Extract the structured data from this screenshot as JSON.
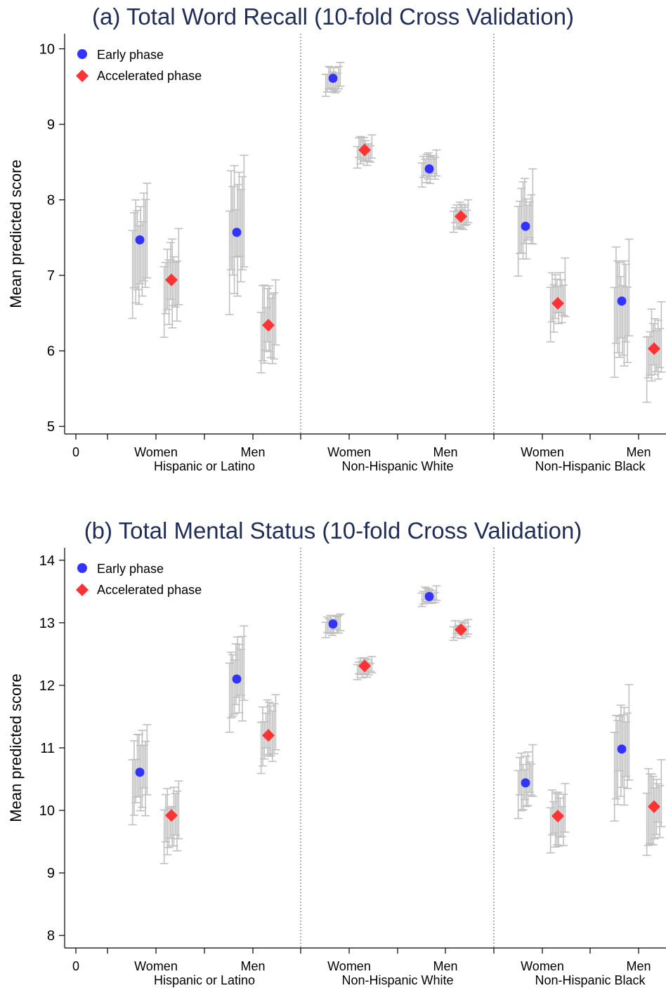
{
  "colors": {
    "early": "#3333ff",
    "accelerated": "#ff3333",
    "whisker": "#c0c0c0",
    "title": "#1f2d57"
  },
  "chart_data": [
    {
      "type": "scatter",
      "title": "(a) Total Word Recall (10-fold Cross Validation)",
      "ylabel": "Mean predicted score",
      "xlabel": "",
      "ylim": [
        4.9,
        10.2
      ],
      "yticks": [
        "5",
        "6",
        "7",
        "8",
        "9",
        "10"
      ],
      "xticks": [
        "0",
        "Women",
        "Men",
        "Women",
        "Men",
        "Women",
        "Men"
      ],
      "groups": [
        "Hispanic or Latino",
        "Non-Hispanic White",
        "Non-Hispanic Black"
      ],
      "legend": {
        "placement": "top-left",
        "entries": [
          "Early phase",
          "Accelerated phase"
        ]
      },
      "grid": false,
      "series": [
        {
          "name": "Early phase",
          "marker": "circle",
          "points": [
            {
              "group": "Hispanic or Latino",
              "sex": "Women",
              "mean": 7.47,
              "fold_ci_low": 6.43,
              "fold_ci_high": 8.22
            },
            {
              "group": "Hispanic or Latino",
              "sex": "Men",
              "mean": 7.57,
              "fold_ci_low": 6.48,
              "fold_ci_high": 8.59
            },
            {
              "group": "Non-Hispanic White",
              "sex": "Women",
              "mean": 9.61,
              "fold_ci_low": 9.37,
              "fold_ci_high": 9.82
            },
            {
              "group": "Non-Hispanic White",
              "sex": "Men",
              "mean": 8.41,
              "fold_ci_low": 8.17,
              "fold_ci_high": 8.66
            },
            {
              "group": "Non-Hispanic Black",
              "sex": "Women",
              "mean": 7.65,
              "fold_ci_low": 6.99,
              "fold_ci_high": 8.41
            },
            {
              "group": "Non-Hispanic Black",
              "sex": "Men",
              "mean": 6.66,
              "fold_ci_low": 5.65,
              "fold_ci_high": 7.48
            }
          ]
        },
        {
          "name": "Accelerated phase",
          "marker": "diamond",
          "points": [
            {
              "group": "Hispanic or Latino",
              "sex": "Women",
              "mean": 6.94,
              "fold_ci_low": 6.18,
              "fold_ci_high": 7.62
            },
            {
              "group": "Hispanic or Latino",
              "sex": "Men",
              "mean": 6.34,
              "fold_ci_low": 5.71,
              "fold_ci_high": 6.94
            },
            {
              "group": "Non-Hispanic White",
              "sex": "Women",
              "mean": 8.66,
              "fold_ci_low": 8.42,
              "fold_ci_high": 8.86
            },
            {
              "group": "Non-Hispanic White",
              "sex": "Men",
              "mean": 7.78,
              "fold_ci_low": 7.57,
              "fold_ci_high": 8.0
            },
            {
              "group": "Non-Hispanic Black",
              "sex": "Women",
              "mean": 6.63,
              "fold_ci_low": 6.12,
              "fold_ci_high": 7.23
            },
            {
              "group": "Non-Hispanic Black",
              "sex": "Men",
              "mean": 6.03,
              "fold_ci_low": 5.32,
              "fold_ci_high": 6.65
            }
          ]
        }
      ]
    },
    {
      "type": "scatter",
      "title": "(b) Total Mental Status (10-fold Cross Validation)",
      "ylabel": "Mean predicted score",
      "xlabel": "",
      "ylim": [
        7.8,
        14.2
      ],
      "yticks": [
        "8",
        "9",
        "10",
        "11",
        "12",
        "13",
        "14"
      ],
      "xticks": [
        "0",
        "Women",
        "Men",
        "Women",
        "Men",
        "Women",
        "Men"
      ],
      "groups": [
        "Hispanic or Latino",
        "Non-Hispanic White",
        "Non-Hispanic Black"
      ],
      "legend": {
        "placement": "top-left",
        "entries": [
          "Early phase",
          "Accelerated phase"
        ]
      },
      "grid": false,
      "series": [
        {
          "name": "Early phase",
          "marker": "circle",
          "points": [
            {
              "group": "Hispanic or Latino",
              "sex": "Women",
              "mean": 10.61,
              "fold_ci_low": 9.77,
              "fold_ci_high": 11.37
            },
            {
              "group": "Hispanic or Latino",
              "sex": "Men",
              "mean": 12.1,
              "fold_ci_low": 11.25,
              "fold_ci_high": 12.95
            },
            {
              "group": "Non-Hispanic White",
              "sex": "Women",
              "mean": 12.98,
              "fold_ci_low": 12.76,
              "fold_ci_high": 13.14
            },
            {
              "group": "Non-Hispanic White",
              "sex": "Men",
              "mean": 13.42,
              "fold_ci_low": 13.26,
              "fold_ci_high": 13.59
            },
            {
              "group": "Non-Hispanic Black",
              "sex": "Women",
              "mean": 10.44,
              "fold_ci_low": 9.87,
              "fold_ci_high": 11.05
            },
            {
              "group": "Non-Hispanic Black",
              "sex": "Men",
              "mean": 10.98,
              "fold_ci_low": 9.83,
              "fold_ci_high": 12.01
            }
          ]
        },
        {
          "name": "Accelerated phase",
          "marker": "diamond",
          "points": [
            {
              "group": "Hispanic or Latino",
              "sex": "Women",
              "mean": 9.92,
              "fold_ci_low": 9.15,
              "fold_ci_high": 10.47
            },
            {
              "group": "Hispanic or Latino",
              "sex": "Men",
              "mean": 11.2,
              "fold_ci_low": 10.59,
              "fold_ci_high": 11.85
            },
            {
              "group": "Non-Hispanic White",
              "sex": "Women",
              "mean": 12.31,
              "fold_ci_low": 12.09,
              "fold_ci_high": 12.46
            },
            {
              "group": "Non-Hispanic White",
              "sex": "Men",
              "mean": 12.89,
              "fold_ci_low": 12.72,
              "fold_ci_high": 13.05
            },
            {
              "group": "Non-Hispanic Black",
              "sex": "Women",
              "mean": 9.91,
              "fold_ci_low": 9.32,
              "fold_ci_high": 10.43
            },
            {
              "group": "Non-Hispanic Black",
              "sex": "Men",
              "mean": 10.06,
              "fold_ci_low": 9.28,
              "fold_ci_high": 10.81
            }
          ]
        }
      ]
    }
  ]
}
